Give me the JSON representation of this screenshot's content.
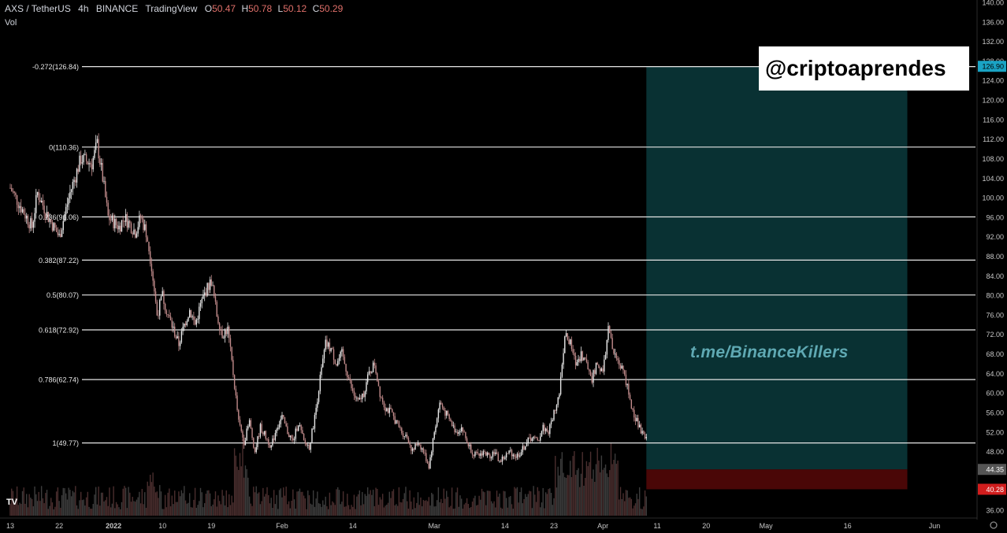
{
  "header": {
    "symbol": "AXS / TetherUS",
    "interval": "4h",
    "exchange": "BINANCE",
    "platform": "TradingView",
    "open_label": "O",
    "open": "50.47",
    "high_label": "H",
    "high": "50.78",
    "low_label": "L",
    "low": "50.12",
    "close_label": "C",
    "close": "50.29",
    "volume_label": "Vol"
  },
  "watermark": "@criptoaprendes",
  "overlay_text": "t.me/BinanceKillers",
  "logo_text": "TV",
  "colors": {
    "background": "#000000",
    "candle_up": "#e8e8e8",
    "candle_down": "#c08a8a",
    "fib_line": "#e6e6e6",
    "target_zone": "#0b3a3c",
    "stop_zone": "#4a0707",
    "target_label": "#1aa3c4",
    "stop_label": "#d11d1d",
    "axis_text": "#c8c8c8"
  },
  "chart_data": {
    "type": "candlestick",
    "y_axis": {
      "range": [
        35,
        140
      ],
      "ticks": [
        "140.00",
        "136.00",
        "132.00",
        "128.00",
        "124.00",
        "120.00",
        "116.00",
        "112.00",
        "108.00",
        "104.00",
        "100.00",
        "96.00",
        "92.00",
        "88.00",
        "84.00",
        "80.00",
        "76.00",
        "72.00",
        "68.00",
        "64.00",
        "60.00",
        "56.00",
        "52.00",
        "48.00",
        "44.00",
        "40.00",
        "36.00"
      ],
      "tick_values": [
        140,
        136,
        132,
        128,
        124,
        120,
        116,
        112,
        108,
        104,
        100,
        96,
        92,
        88,
        84,
        80,
        76,
        72,
        68,
        64,
        60,
        56,
        52,
        48,
        44,
        40,
        36
      ]
    },
    "x_axis": {
      "ticks": [
        {
          "label": "13",
          "day": 0
        },
        {
          "label": "22",
          "day": 9
        },
        {
          "label": "2022",
          "day": 19
        },
        {
          "label": "10",
          "day": 28
        },
        {
          "label": "19",
          "day": 37
        },
        {
          "label": "Feb",
          "day": 50
        },
        {
          "label": "14",
          "day": 63
        },
        {
          "label": "Mar",
          "day": 78
        },
        {
          "label": "14",
          "day": 91
        },
        {
          "label": "23",
          "day": 100
        },
        {
          "label": "Apr",
          "day": 109
        },
        {
          "label": "11",
          "day": 119
        },
        {
          "label": "20",
          "day": 128
        },
        {
          "label": "May",
          "day": 139
        },
        {
          "label": "16",
          "day": 154
        },
        {
          "label": "Jun",
          "day": 170
        }
      ]
    },
    "fib_levels": [
      {
        "label": "-0.272(126.84)",
        "value": 126.84
      },
      {
        "label": "0(110.36)",
        "value": 110.36
      },
      {
        "label": "0.236(96.06)",
        "value": 96.06
      },
      {
        "label": "0.382(87.22)",
        "value": 87.22
      },
      {
        "label": "0.5(80.07)",
        "value": 80.07
      },
      {
        "label": "0.618(72.92)",
        "value": 72.92
      },
      {
        "label": "0.786(62.74)",
        "value": 62.74
      },
      {
        "label": "1(49.77)",
        "value": 49.77
      }
    ],
    "position": {
      "start_day": 117,
      "end_day": 165,
      "target": 126.9,
      "entry": 44.35,
      "stop": 40.28,
      "target_label": "126.90",
      "entry_label": "44.35",
      "stop_label": "40.28"
    },
    "price_path": [
      {
        "day": 0,
        "price": 102
      },
      {
        "day": 2,
        "price": 98
      },
      {
        "day": 4,
        "price": 94
      },
      {
        "day": 5,
        "price": 101
      },
      {
        "day": 7,
        "price": 96
      },
      {
        "day": 9,
        "price": 92
      },
      {
        "day": 11,
        "price": 101
      },
      {
        "day": 13,
        "price": 108
      },
      {
        "day": 15,
        "price": 107
      },
      {
        "day": 16,
        "price": 111
      },
      {
        "day": 17,
        "price": 104
      },
      {
        "day": 18,
        "price": 96
      },
      {
        "day": 20,
        "price": 94
      },
      {
        "day": 21,
        "price": 96
      },
      {
        "day": 23,
        "price": 93
      },
      {
        "day": 24,
        "price": 96
      },
      {
        "day": 25,
        "price": 93
      },
      {
        "day": 26,
        "price": 86
      },
      {
        "day": 27,
        "price": 76
      },
      {
        "day": 28,
        "price": 80
      },
      {
        "day": 29,
        "price": 76
      },
      {
        "day": 30,
        "price": 73
      },
      {
        "day": 31,
        "price": 70
      },
      {
        "day": 32,
        "price": 74
      },
      {
        "day": 33,
        "price": 77
      },
      {
        "day": 34,
        "price": 74
      },
      {
        "day": 35,
        "price": 78
      },
      {
        "day": 36,
        "price": 81
      },
      {
        "day": 37,
        "price": 83
      },
      {
        "day": 38,
        "price": 76
      },
      {
        "day": 39,
        "price": 72
      },
      {
        "day": 40,
        "price": 73
      },
      {
        "day": 41,
        "price": 64
      },
      {
        "day": 42,
        "price": 54
      },
      {
        "day": 43,
        "price": 50
      },
      {
        "day": 44,
        "price": 54
      },
      {
        "day": 45,
        "price": 48
      },
      {
        "day": 46,
        "price": 53
      },
      {
        "day": 47,
        "price": 51
      },
      {
        "day": 48,
        "price": 49
      },
      {
        "day": 49,
        "price": 53
      },
      {
        "day": 50,
        "price": 55
      },
      {
        "day": 51,
        "price": 52
      },
      {
        "day": 52,
        "price": 50
      },
      {
        "day": 53,
        "price": 54
      },
      {
        "day": 54,
        "price": 50
      },
      {
        "day": 55,
        "price": 49
      },
      {
        "day": 56,
        "price": 55
      },
      {
        "day": 57,
        "price": 63
      },
      {
        "day": 58,
        "price": 70
      },
      {
        "day": 59,
        "price": 69
      },
      {
        "day": 60,
        "price": 66
      },
      {
        "day": 61,
        "price": 68
      },
      {
        "day": 62,
        "price": 64
      },
      {
        "day": 63,
        "price": 60
      },
      {
        "day": 64,
        "price": 58
      },
      {
        "day": 65,
        "price": 60
      },
      {
        "day": 66,
        "price": 64
      },
      {
        "day": 67,
        "price": 66
      },
      {
        "day": 68,
        "price": 60
      },
      {
        "day": 69,
        "price": 57
      },
      {
        "day": 70,
        "price": 56
      },
      {
        "day": 71,
        "price": 54
      },
      {
        "day": 72,
        "price": 52
      },
      {
        "day": 73,
        "price": 51
      },
      {
        "day": 74,
        "price": 48
      },
      {
        "day": 75,
        "price": 50
      },
      {
        "day": 76,
        "price": 48
      },
      {
        "day": 77,
        "price": 45
      },
      {
        "day": 78,
        "price": 52
      },
      {
        "day": 79,
        "price": 58
      },
      {
        "day": 80,
        "price": 56
      },
      {
        "day": 81,
        "price": 54
      },
      {
        "day": 82,
        "price": 52
      },
      {
        "day": 83,
        "price": 53
      },
      {
        "day": 84,
        "price": 50
      },
      {
        "day": 85,
        "price": 48
      },
      {
        "day": 86,
        "price": 47
      },
      {
        "day": 87,
        "price": 48
      },
      {
        "day": 88,
        "price": 47
      },
      {
        "day": 89,
        "price": 48
      },
      {
        "day": 90,
        "price": 46
      },
      {
        "day": 91,
        "price": 47
      },
      {
        "day": 92,
        "price": 48
      },
      {
        "day": 93,
        "price": 47
      },
      {
        "day": 94,
        "price": 48
      },
      {
        "day": 95,
        "price": 50
      },
      {
        "day": 96,
        "price": 51
      },
      {
        "day": 97,
        "price": 50
      },
      {
        "day": 98,
        "price": 53
      },
      {
        "day": 99,
        "price": 52
      },
      {
        "day": 100,
        "price": 56
      },
      {
        "day": 101,
        "price": 60
      },
      {
        "day": 102,
        "price": 72
      },
      {
        "day": 103,
        "price": 70
      },
      {
        "day": 104,
        "price": 66
      },
      {
        "day": 105,
        "price": 68
      },
      {
        "day": 106,
        "price": 66
      },
      {
        "day": 107,
        "price": 63
      },
      {
        "day": 108,
        "price": 66
      },
      {
        "day": 109,
        "price": 64
      },
      {
        "day": 110,
        "price": 73
      },
      {
        "day": 111,
        "price": 68
      },
      {
        "day": 112,
        "price": 66
      },
      {
        "day": 113,
        "price": 64
      },
      {
        "day": 114,
        "price": 58
      },
      {
        "day": 115,
        "price": 55
      },
      {
        "day": 116,
        "price": 52
      },
      {
        "day": 117,
        "price": 50.3
      }
    ]
  }
}
